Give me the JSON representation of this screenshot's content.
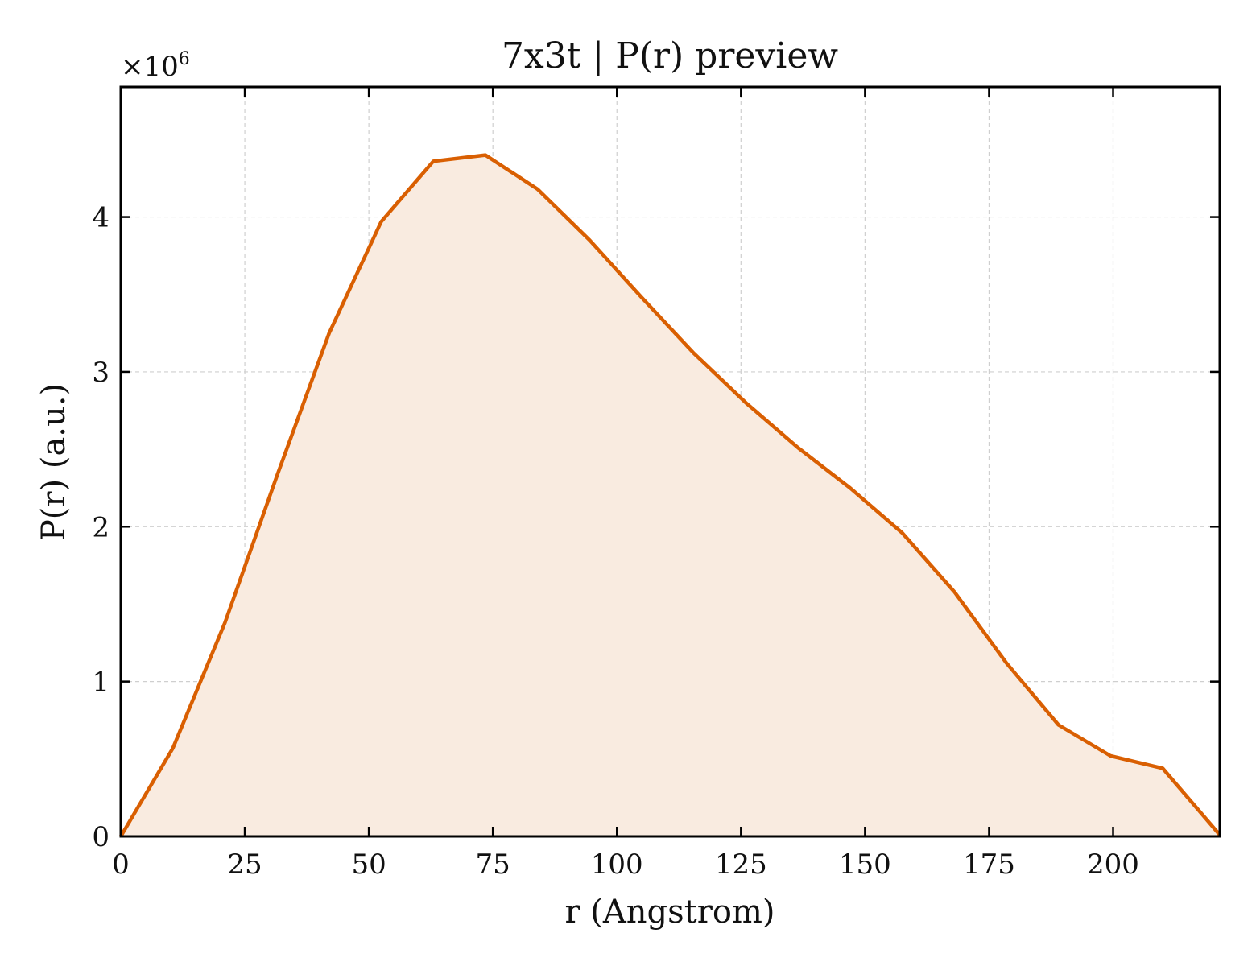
{
  "chart_data": {
    "type": "area",
    "title": "7x3t | P(r) preview",
    "xlabel": "r (Angstrom)",
    "ylabel": "P(r) (a.u.)",
    "y_multiplier": "×10",
    "y_multiplier_exponent": "6",
    "xlim": [
      0,
      221.5
    ],
    "ylim": [
      0,
      4.84
    ],
    "xticks": [
      0,
      25,
      50,
      75,
      100,
      125,
      150,
      175,
      200
    ],
    "yticks": [
      0,
      1,
      2,
      3,
      4
    ],
    "grid": true,
    "series": [
      {
        "color": "#d95f02",
        "fill_color": "#f9ebe0",
        "x": [
          0,
          10.5,
          21,
          31.5,
          42,
          52.5,
          63,
          73.5,
          84,
          94.5,
          105,
          115.5,
          126,
          136.5,
          147,
          157.5,
          168,
          178.5,
          189,
          199.5,
          210,
          221.5
        ],
        "y": [
          0,
          0.57,
          1.38,
          2.33,
          3.25,
          3.97,
          4.36,
          4.4,
          4.18,
          3.85,
          3.48,
          3.12,
          2.8,
          2.51,
          2.25,
          1.96,
          1.58,
          1.12,
          0.72,
          0.52,
          0.44,
          0.01
        ]
      }
    ]
  }
}
